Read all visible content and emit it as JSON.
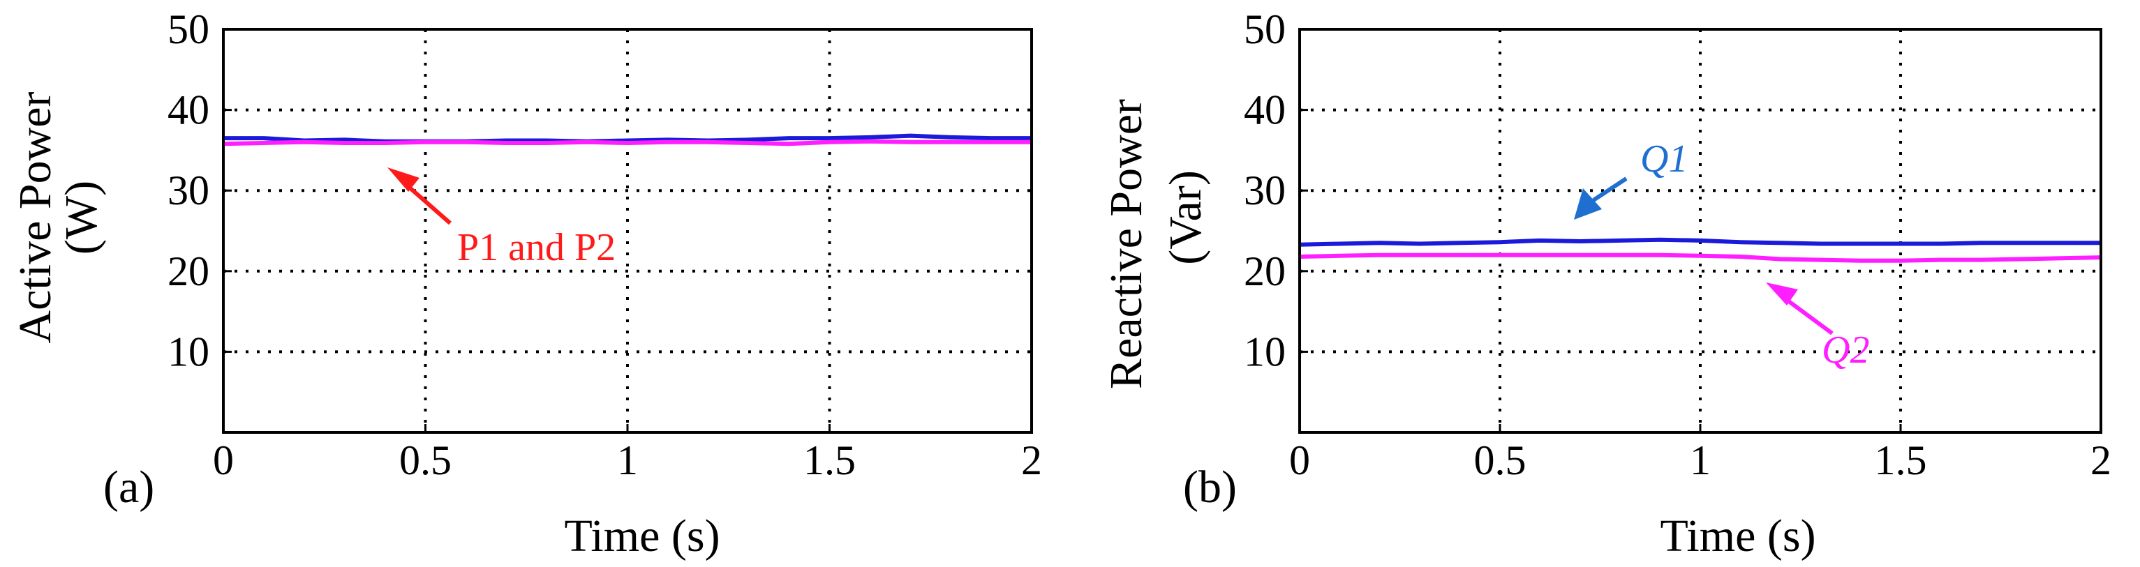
{
  "colors": {
    "p1": "#1a1adb",
    "p2": "#ff1eff",
    "q1": "#1a1adb",
    "q2": "#ff1eff",
    "annot_red": "#ff1a1a",
    "annot_blue": "#1f6fd1",
    "annot_magenta": "#ff1eff"
  },
  "chart_data": [
    {
      "type": "line",
      "panel_label": "(a)",
      "xlabel": "Time (s)",
      "ylabel_line1": "Active Power",
      "ylabel_line2": "(W)",
      "xlim": [
        0,
        2
      ],
      "ylim": [
        0,
        50
      ],
      "xticks": [
        0,
        0.5,
        1,
        1.5,
        2
      ],
      "xtick_labels": [
        "0",
        "0.5",
        "1",
        "1.5",
        "2"
      ],
      "yticks": [
        10,
        20,
        30,
        40,
        50
      ],
      "ytick_labels": [
        "10",
        "20",
        "30",
        "40",
        "50"
      ],
      "grid": true,
      "annotation": "P1 and P2",
      "series": [
        {
          "color_key": "p1",
          "x": [
            0,
            0.1,
            0.2,
            0.3,
            0.4,
            0.5,
            0.6,
            0.7,
            0.8,
            0.9,
            1.0,
            1.1,
            1.2,
            1.3,
            1.4,
            1.5,
            1.6,
            1.7,
            1.8,
            1.9,
            2.0
          ],
          "y": [
            36.5,
            36.5,
            36.2,
            36.3,
            36.1,
            36.1,
            36.1,
            36.2,
            36.2,
            36.1,
            36.2,
            36.3,
            36.2,
            36.3,
            36.5,
            36.5,
            36.6,
            36.8,
            36.6,
            36.5,
            36.5
          ]
        },
        {
          "color_key": "p2",
          "x": [
            0,
            0.1,
            0.2,
            0.3,
            0.4,
            0.5,
            0.6,
            0.7,
            0.8,
            0.9,
            1.0,
            1.1,
            1.2,
            1.3,
            1.4,
            1.5,
            1.6,
            1.7,
            1.8,
            1.9,
            2.0
          ],
          "y": [
            35.8,
            35.9,
            36.0,
            35.9,
            35.9,
            36.0,
            36.0,
            35.9,
            35.9,
            36.0,
            35.9,
            36.0,
            36.0,
            35.9,
            35.8,
            36.0,
            36.1,
            36.0,
            36.0,
            36.0,
            36.0
          ]
        }
      ]
    },
    {
      "type": "line",
      "panel_label": "(b)",
      "xlabel": "Time (s)",
      "ylabel_line1": "Reactive Power",
      "ylabel_line2": "(Var)",
      "xlim": [
        0,
        2
      ],
      "ylim": [
        0,
        50
      ],
      "xticks": [
        0,
        0.5,
        1,
        1.5,
        2
      ],
      "xtick_labels": [
        "0",
        "0.5",
        "1",
        "1.5",
        "2"
      ],
      "yticks": [
        10,
        20,
        30,
        40,
        50
      ],
      "ytick_labels": [
        "10",
        "20",
        "30",
        "40",
        "50"
      ],
      "grid": true,
      "annotation_q1": "Q1",
      "annotation_q2": "Q2",
      "series": [
        {
          "color_key": "q1",
          "x": [
            0,
            0.1,
            0.2,
            0.3,
            0.4,
            0.5,
            0.6,
            0.7,
            0.8,
            0.9,
            1.0,
            1.1,
            1.2,
            1.3,
            1.4,
            1.5,
            1.6,
            1.7,
            1.8,
            1.9,
            2.0
          ],
          "y": [
            23.3,
            23.4,
            23.5,
            23.4,
            23.5,
            23.6,
            23.8,
            23.7,
            23.8,
            23.9,
            23.8,
            23.6,
            23.5,
            23.4,
            23.4,
            23.4,
            23.4,
            23.5,
            23.5,
            23.5,
            23.5
          ]
        },
        {
          "color_key": "q2",
          "x": [
            0,
            0.1,
            0.2,
            0.3,
            0.4,
            0.5,
            0.6,
            0.7,
            0.8,
            0.9,
            1.0,
            1.1,
            1.2,
            1.3,
            1.4,
            1.5,
            1.6,
            1.7,
            1.8,
            1.9,
            2.0
          ],
          "y": [
            21.8,
            21.9,
            22.0,
            22.0,
            22.0,
            22.0,
            22.0,
            22.0,
            22.0,
            22.0,
            21.9,
            21.8,
            21.5,
            21.4,
            21.3,
            21.3,
            21.4,
            21.4,
            21.5,
            21.6,
            21.7
          ]
        }
      ]
    }
  ]
}
